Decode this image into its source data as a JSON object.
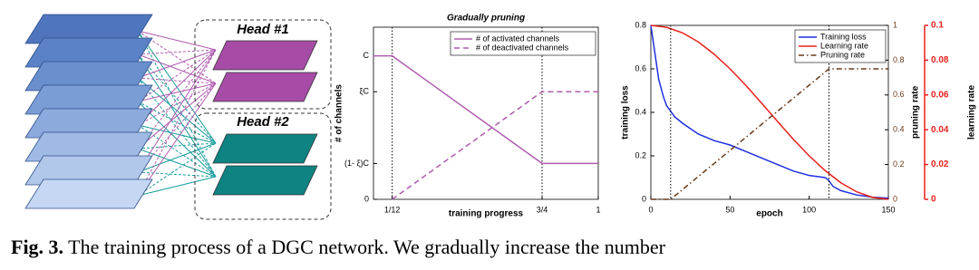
{
  "diagram": {
    "heads": [
      "Head #1",
      "Head #2"
    ]
  },
  "chart_data": [
    {
      "type": "line",
      "title": "Gradually pruning",
      "xlabel": "training progress",
      "ylabel": "# of channels",
      "xlim": [
        0,
        1
      ],
      "xticks": [
        {
          "value": 0.0833,
          "label": "1/12"
        },
        {
          "value": 0.75,
          "label": "3/4"
        },
        1
      ],
      "xtick_guides": true,
      "ylim": [
        0,
        1.2
      ],
      "yticks": [
        0,
        {
          "value": 0.25,
          "label": "(1- ξ)C"
        },
        {
          "value": 0.75,
          "label": "ξC"
        },
        {
          "value": 1,
          "label": "C"
        }
      ],
      "legend": "upper right",
      "series": [
        {
          "name": "# of activated channels",
          "color": "#b05cb0",
          "style": "solid",
          "x": [
            0,
            0.0833,
            0.75,
            1
          ],
          "values": [
            1,
            1,
            0.25,
            0.25
          ]
        },
        {
          "name": "# of deactivated channels",
          "color": "#b05cb0",
          "style": "dashed",
          "x": [
            0.0833,
            0.75,
            1
          ],
          "values": [
            0,
            0.75,
            0.75
          ]
        }
      ]
    },
    {
      "type": "line",
      "xlabel": "epoch",
      "ylabel": "training loss",
      "y2label": "pruning rate",
      "y3label": "learning rate",
      "xlim": [
        0,
        150
      ],
      "xticks": [
        0,
        50,
        100,
        150
      ],
      "ylim": [
        0,
        0.8
      ],
      "yticks": [
        0,
        0.2,
        0.4,
        0.6,
        0.8
      ],
      "y2lim": [
        0,
        1
      ],
      "y2ticks": [
        0,
        0.2,
        0.4,
        0.6,
        0.8,
        1
      ],
      "y3lim": [
        0,
        0.1
      ],
      "y3ticks": [
        0,
        0.02,
        0.04,
        0.06,
        0.08,
        0.1
      ],
      "legend": "upper right",
      "series": [
        {
          "name": "Training loss",
          "color": "#1f2fe0",
          "style": "solid",
          "x": [
            0,
            2,
            5,
            8,
            10,
            12,
            15,
            20,
            30,
            40,
            50,
            60,
            70,
            80,
            90,
            100,
            110,
            112,
            115,
            120,
            130,
            140,
            150
          ],
          "values": [
            0.8,
            0.7,
            0.55,
            0.47,
            0.43,
            0.41,
            0.38,
            0.35,
            0.3,
            0.27,
            0.25,
            0.22,
            0.19,
            0.16,
            0.13,
            0.11,
            0.1,
            0.09,
            0.06,
            0.04,
            0.02,
            0.01,
            0.005
          ]
        },
        {
          "name": "Learning rate",
          "color": "#e8201c",
          "style": "solid",
          "axis": "y3",
          "x": [
            0,
            10,
            20,
            30,
            40,
            50,
            60,
            70,
            80,
            90,
            100,
            110,
            120,
            130,
            140,
            150
          ],
          "values": [
            0.1,
            0.0989,
            0.0957,
            0.0905,
            0.0834,
            0.075,
            0.0655,
            0.0552,
            0.0448,
            0.0345,
            0.025,
            0.0166,
            0.0095,
            0.0043,
            0.0011,
            0
          ]
        },
        {
          "name": "Pruning rate",
          "color": "#6b3a1a",
          "style": "dashdot",
          "axis": "y2",
          "x": [
            0,
            12.5,
            112.5,
            150
          ],
          "values": [
            0,
            0,
            0.75,
            0.75
          ]
        }
      ]
    }
  ],
  "caption": {
    "label": "Fig. 3.",
    "text": "The training process of a DGC network. We gradually increase the number"
  }
}
